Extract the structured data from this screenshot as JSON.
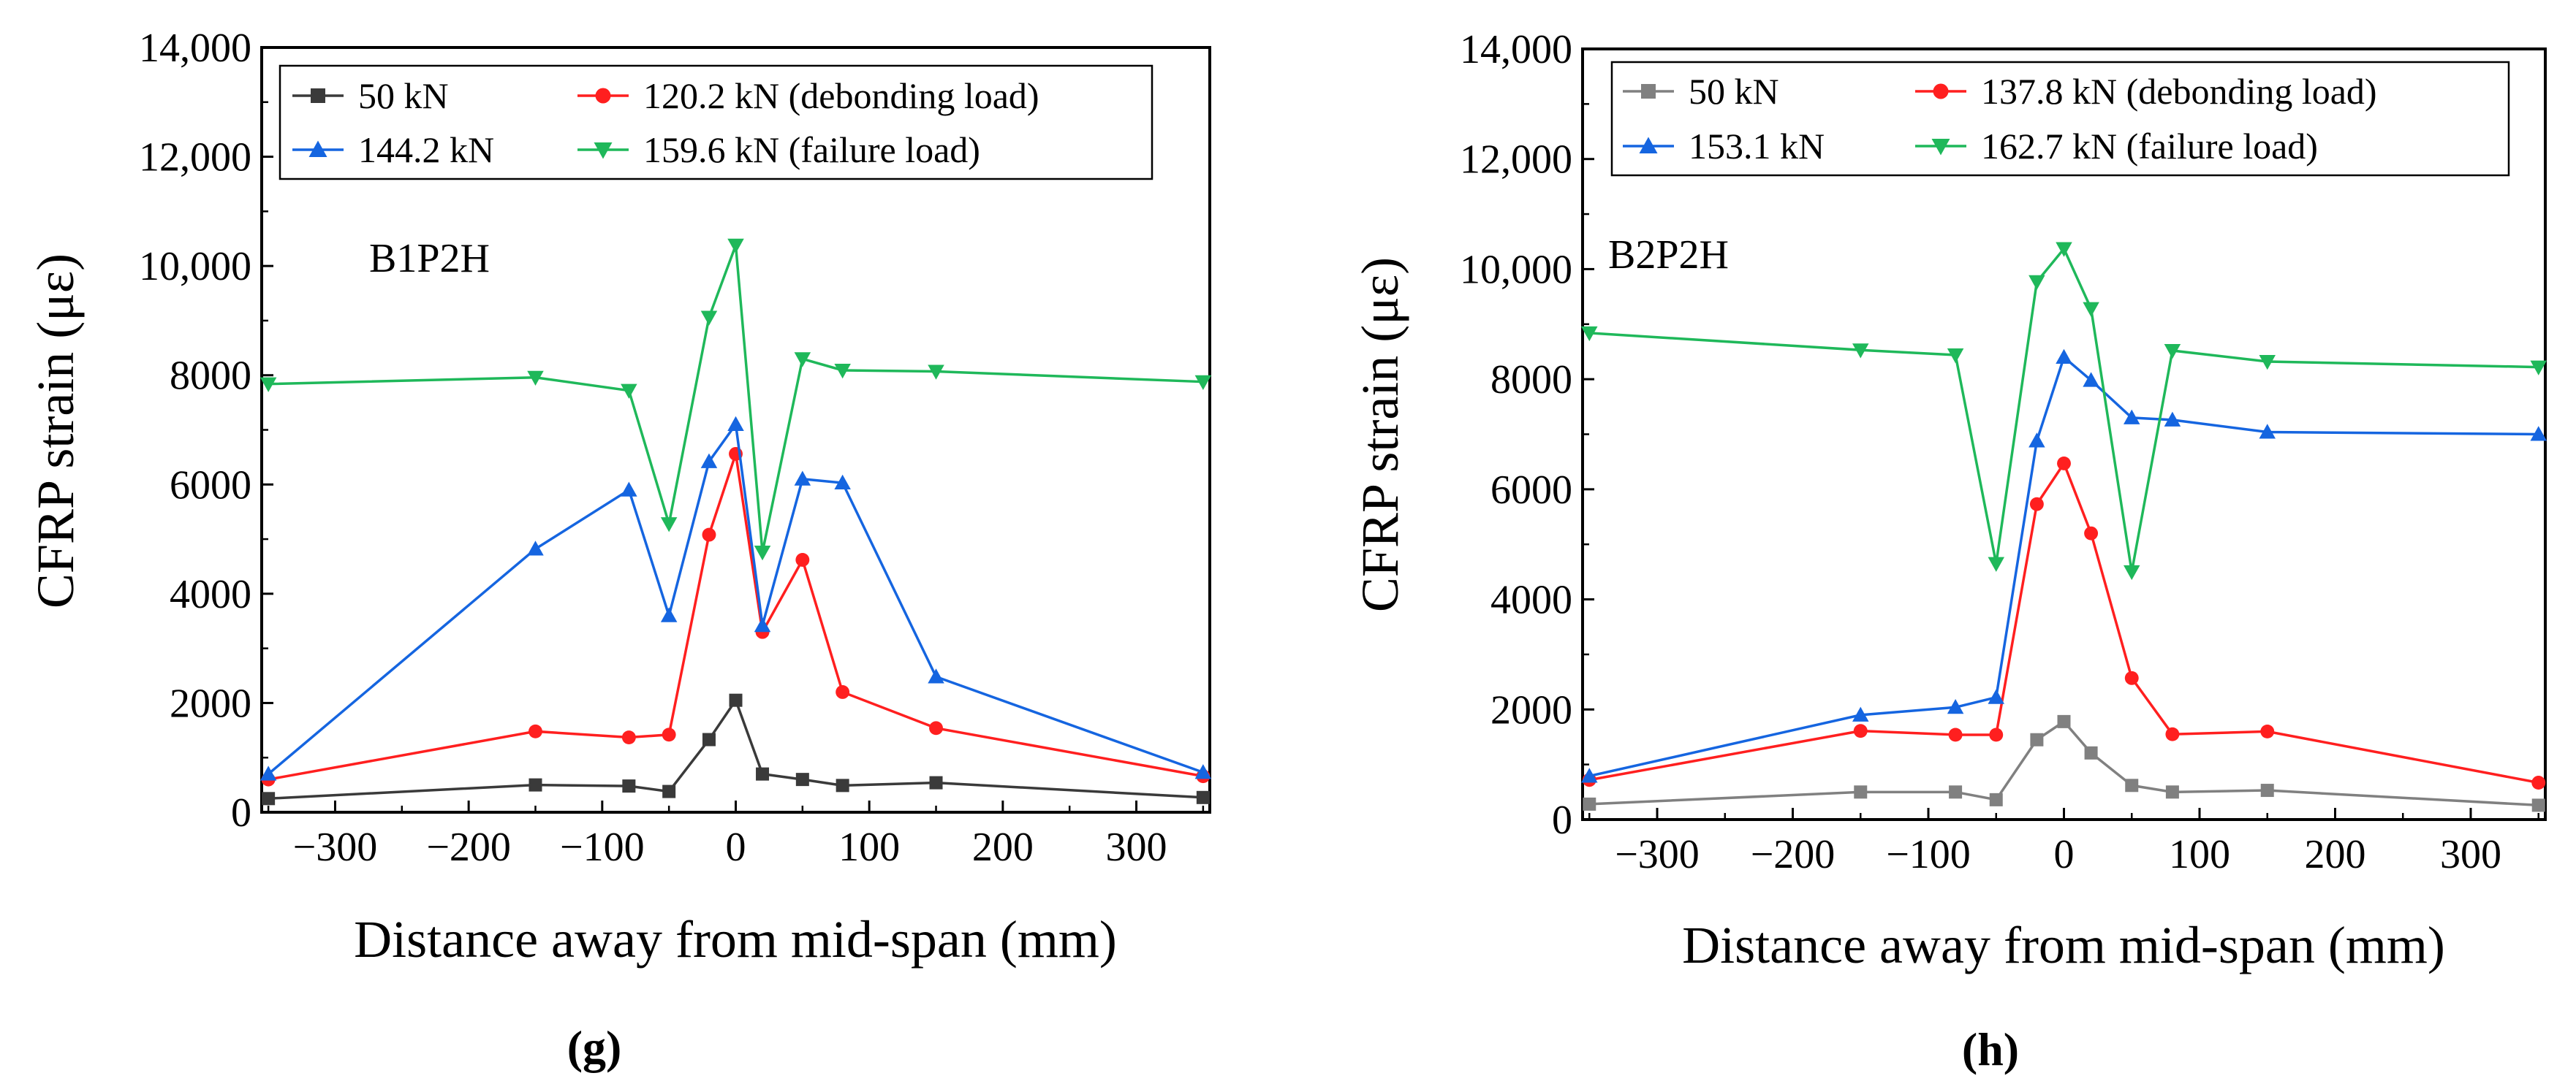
{
  "chart_data": [
    {
      "type": "line",
      "panel_label": "(g)",
      "specimen": "B1P2H",
      "xlabel": "Distance away from mid-span (mm)",
      "ylabel": "CFRP strain (με)",
      "xlim": [
        -355,
        355
      ],
      "ylim": [
        0,
        14000
      ],
      "x_ticks": [
        -300,
        -200,
        -100,
        0,
        100,
        200,
        300
      ],
      "x_tick_labels": [
        "−300",
        "−200",
        "−100",
        "0",
        "100",
        "200",
        "300"
      ],
      "y_ticks": [
        0,
        2000,
        4000,
        6000,
        8000,
        10000,
        12000,
        14000
      ],
      "y_tick_labels": [
        "0",
        "2000",
        "4000",
        "6000",
        "8000",
        "10,000",
        "12,000",
        "14,000"
      ],
      "x": [
        -350,
        -150,
        -80,
        -50,
        -20,
        0,
        20,
        50,
        80,
        150,
        350
      ],
      "series": [
        {
          "name": "50 kN",
          "color": "#3a3a3a",
          "marker": "square",
          "values": [
            250,
            500,
            480,
            380,
            1330,
            2050,
            700,
            600,
            490,
            540,
            270
          ]
        },
        {
          "name": "120.2 kN (debonding load)",
          "color": "#ff1f1f",
          "marker": "circle",
          "values": [
            600,
            1480,
            1370,
            1420,
            5080,
            6560,
            3300,
            4620,
            2200,
            1540,
            660
          ]
        },
        {
          "name": "144.2 kN",
          "color": "#1565e0",
          "marker": "triangle-up",
          "values": [
            700,
            4820,
            5900,
            3600,
            6420,
            7100,
            3420,
            6100,
            6030,
            2480,
            730
          ]
        },
        {
          "name": "159.6 kN (failure load)",
          "color": "#1fb85a",
          "marker": "triangle-down",
          "values": [
            7840,
            7960,
            7720,
            5280,
            9060,
            10380,
            4760,
            8300,
            8090,
            8070,
            7880
          ]
        }
      ]
    },
    {
      "type": "line",
      "panel_label": "(h)",
      "specimen": "B2P2H",
      "xlabel": "Distance away from mid-span (mm)",
      "ylabel": "CFRP strain (με)",
      "xlim": [
        -355,
        355
      ],
      "ylim": [
        0,
        14000
      ],
      "x_ticks": [
        -300,
        -200,
        -100,
        0,
        100,
        200,
        300
      ],
      "x_tick_labels": [
        "−300",
        "−200",
        "−100",
        "0",
        "100",
        "200",
        "300"
      ],
      "y_ticks": [
        0,
        2000,
        4000,
        6000,
        8000,
        10000,
        12000,
        14000
      ],
      "y_tick_labels": [
        "0",
        "2000",
        "4000",
        "6000",
        "8000",
        "10,000",
        "12,000",
        "14,000"
      ],
      "x": [
        -350,
        -150,
        -80,
        -50,
        -20,
        0,
        20,
        50,
        80,
        150,
        350
      ],
      "series": [
        {
          "name": "50 kN",
          "color": "#808080",
          "marker": "square",
          "values": [
            280,
            500,
            500,
            360,
            1450,
            1780,
            1210,
            620,
            500,
            530,
            260
          ]
        },
        {
          "name": "137.8 kN (debonding load)",
          "color": "#ff1f1f",
          "marker": "circle",
          "values": [
            720,
            1610,
            1540,
            1540,
            5730,
            6470,
            5200,
            2570,
            1550,
            1600,
            670
          ]
        },
        {
          "name": "153.1 kN",
          "color": "#1565e0",
          "marker": "triangle-up",
          "values": [
            790,
            1900,
            2040,
            2220,
            6880,
            8400,
            7980,
            7300,
            7260,
            7040,
            7000
          ]
        },
        {
          "name": "162.7 kN (failure load)",
          "color": "#1fb85a",
          "marker": "triangle-down",
          "values": [
            8840,
            8530,
            8440,
            4650,
            9770,
            10370,
            9280,
            4500,
            8520,
            8320,
            8220
          ]
        }
      ]
    }
  ]
}
